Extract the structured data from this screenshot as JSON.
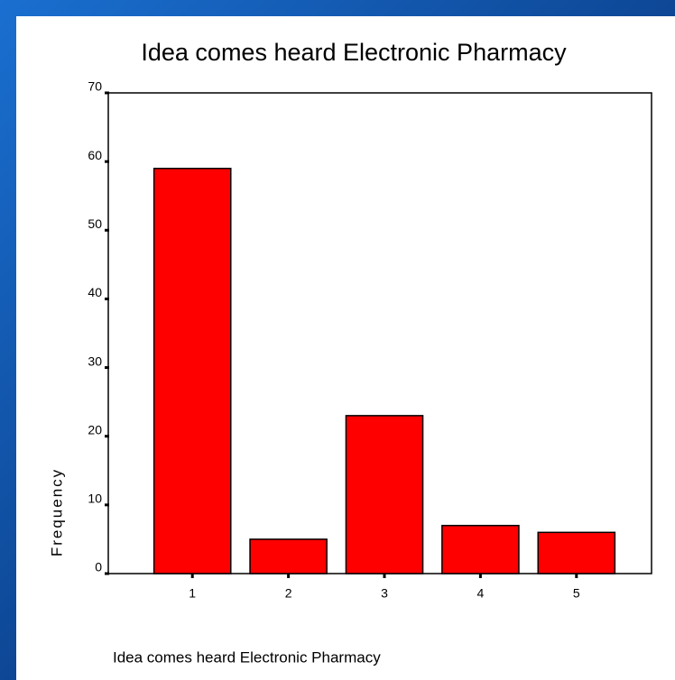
{
  "chart_data": {
    "type": "bar",
    "title": "Idea comes heard Electronic Pharmacy",
    "x_label": "Idea comes heard Electronic Pharmacy",
    "y_label": "Frequency",
    "categories": [
      "1",
      "2",
      "3",
      "4",
      "5"
    ],
    "values": [
      59,
      5,
      23,
      7,
      6
    ],
    "color": "#ff0000",
    "ylim": [
      0,
      70
    ],
    "yticks": [
      0,
      10,
      20,
      30,
      40,
      50,
      60,
      70
    ],
    "grid": false
  }
}
